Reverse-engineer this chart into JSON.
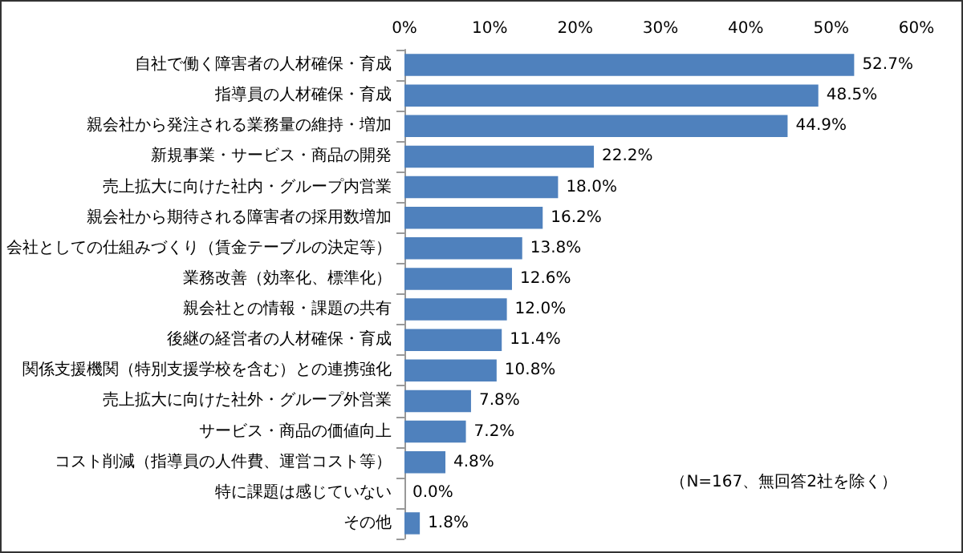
{
  "chart_data": {
    "type": "bar",
    "orientation": "horizontal",
    "categories": [
      "自社で働く障害者の人材確保・育成",
      "指導員の人材確保・育成",
      "親会社から発注される業務量の維持・増加",
      "新規事業・サービス・商品の開発",
      "売上拡大に向けた社内・グループ内営業",
      "親会社から期待される障害者の採用数増加",
      "会社としての仕組みづくり（賃金テーブルの決定等）",
      "業務改善（効率化、標準化）",
      "親会社との情報・課題の共有",
      "後継の経営者の人材確保・育成",
      "関係支援機関（特別支援学校を含む）との連携強化",
      "売上拡大に向けた社外・グループ外営業",
      "サービス・商品の価値向上",
      "コスト削減（指導員の人件費、運営コスト等）",
      "特に課題は感じていない",
      "その他"
    ],
    "values": [
      52.7,
      48.5,
      44.9,
      22.2,
      18.0,
      16.2,
      13.8,
      12.6,
      12.0,
      11.4,
      10.8,
      7.8,
      7.2,
      4.8,
      0.0,
      1.8
    ],
    "value_labels": [
      "52.7%",
      "48.5%",
      "44.9%",
      "22.2%",
      "18.0%",
      "16.2%",
      "13.8%",
      "12.6%",
      "12.0%",
      "11.4%",
      "10.8%",
      "7.8%",
      "7.2%",
      "4.8%",
      "0.0%",
      "1.8%"
    ],
    "color": "#4f81bd",
    "xlim": [
      0,
      60
    ],
    "xticks": [
      {
        "value": 0,
        "label": "0%"
      },
      {
        "value": 10,
        "label": "10%"
      },
      {
        "value": 20,
        "label": "20%"
      },
      {
        "value": 30,
        "label": "30%"
      },
      {
        "value": 40,
        "label": "40%"
      },
      {
        "value": 50,
        "label": "50%"
      },
      {
        "value": 60,
        "label": "60%"
      }
    ],
    "grid": false,
    "annotations": [
      "（N=167、無回答2社を除く）"
    ]
  }
}
